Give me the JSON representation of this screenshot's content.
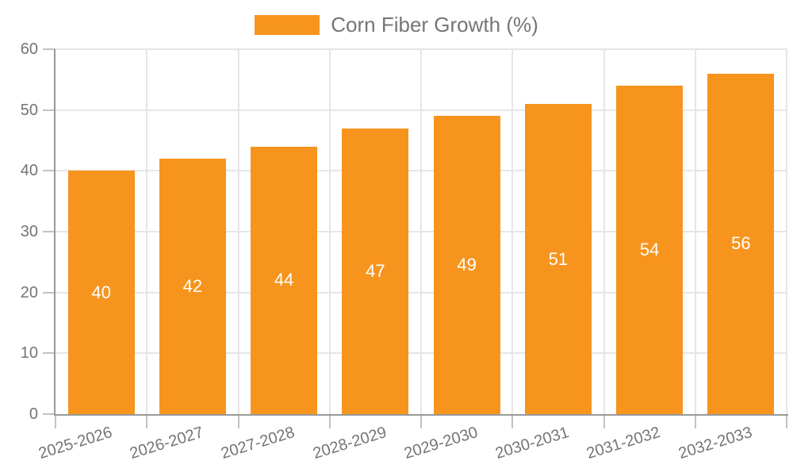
{
  "chart_data": {
    "type": "bar",
    "title": "",
    "legend": "Corn Fiber Growth (%)",
    "legend_position": "top-center",
    "categories": [
      "2025-2026",
      "2026-2027",
      "2027-2028",
      "2028-2029",
      "2029-2030",
      "2030-2031",
      "2031-2032",
      "2032-2033"
    ],
    "values": [
      40,
      42,
      44,
      47,
      49,
      51,
      54,
      56
    ],
    "value_labels": [
      "40",
      "42",
      "44",
      "47",
      "49",
      "51",
      "54",
      "56"
    ],
    "xlabel": "",
    "ylabel": "",
    "ylim": [
      0,
      60
    ],
    "yticks": [
      0,
      10,
      20,
      30,
      40,
      50,
      60
    ],
    "grid": true,
    "x_label_rotation_deg": -17,
    "colors": {
      "bar": "#f7941e",
      "bar_label": "#ffffff",
      "axis": "#999999",
      "grid": "#e6e6e6",
      "tick": "#c2c2c2",
      "text": "#757575",
      "background": "#ffffff"
    }
  }
}
